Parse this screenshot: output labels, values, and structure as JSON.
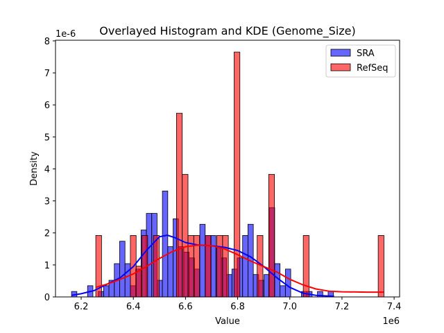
{
  "chart_data": {
    "type": "bar",
    "title": "Overlayed Histogram and KDE (Genome_Size)",
    "xlabel": "Value",
    "ylabel": "Density",
    "x_offset_label": "1e6",
    "y_offset_label": "1e-6",
    "xlim": [
      6.1015,
      7.421
    ],
    "ylim": [
      0,
      8.02
    ],
    "x_ticks": [
      6.2,
      6.4,
      6.6,
      6.8,
      7.0,
      7.2,
      7.4
    ],
    "x_tick_labels": [
      "6.2",
      "6.4",
      "6.6",
      "6.8",
      "7.0",
      "7.2",
      "7.4"
    ],
    "y_ticks": [
      0,
      1,
      2,
      3,
      4,
      5,
      6,
      7,
      8
    ],
    "y_tick_labels": [
      "0",
      "1",
      "2",
      "3",
      "4",
      "5",
      "6",
      "7",
      "8"
    ],
    "grid": false,
    "legend_position": "top-right",
    "series": [
      {
        "name": "SRA",
        "color": "#0000ff",
        "bin_start": 6.163,
        "bin_width": 0.0205,
        "values": [
          0.17,
          0,
          0,
          0.35,
          0,
          0.17,
          0.35,
          0.52,
          1.04,
          1.74,
          1.04,
          0.35,
          0.87,
          2.09,
          2.61,
          2.61,
          0.52,
          3.31,
          1.57,
          2.44,
          1.57,
          1.4,
          1.22,
          0.87,
          2.27,
          1.92,
          1.92,
          1.57,
          1.22,
          0.7,
          0.87,
          1.22,
          1.92,
          2.27,
          0.7,
          0.52,
          0.7,
          2.79,
          1.04,
          0.35,
          0.87,
          0,
          0,
          0.17,
          0.17,
          0,
          0.17,
          0,
          0.17,
          0
        ],
        "kde": {
          "x": [
            6.163,
            6.2,
            6.25,
            6.3,
            6.35,
            6.4,
            6.45,
            6.5,
            6.53,
            6.56,
            6.6,
            6.65,
            6.7,
            6.75,
            6.8,
            6.85,
            6.9,
            6.95,
            7.0,
            7.05,
            7.1,
            7.17
          ],
          "y": [
            0.05,
            0.1,
            0.2,
            0.4,
            0.6,
            0.95,
            1.45,
            1.88,
            1.93,
            1.85,
            1.7,
            1.62,
            1.6,
            1.55,
            1.45,
            1.25,
            0.95,
            0.6,
            0.3,
            0.12,
            0.05,
            0.02
          ]
        }
      },
      {
        "name": "RefSeq",
        "color": "#ff0000",
        "bin_start": 6.256,
        "bin_width": 0.0221,
        "values": [
          1.92,
          0,
          0,
          0,
          0,
          0,
          1.92,
          0.96,
          1.92,
          0,
          1.92,
          0,
          0,
          0,
          5.74,
          3.83,
          1.92,
          1.92,
          0,
          1.92,
          0,
          1.92,
          1.92,
          0,
          7.65,
          0,
          0,
          0,
          1.92,
          0,
          3.83,
          0,
          0,
          0,
          0,
          0,
          1.92,
          0,
          0,
          0,
          0,
          0,
          0,
          0,
          0,
          0,
          0,
          0,
          0,
          1.92
        ],
        "kde": {
          "x": [
            6.256,
            6.3,
            6.35,
            6.4,
            6.45,
            6.5,
            6.55,
            6.6,
            6.65,
            6.7,
            6.75,
            6.8,
            6.85,
            6.9,
            6.95,
            7.0,
            7.05,
            7.1,
            7.15,
            7.2,
            7.3,
            7.36
          ],
          "y": [
            0.3,
            0.4,
            0.55,
            0.72,
            0.95,
            1.2,
            1.42,
            1.57,
            1.62,
            1.6,
            1.5,
            1.32,
            1.12,
            0.95,
            0.78,
            0.55,
            0.38,
            0.25,
            0.18,
            0.16,
            0.15,
            0.15
          ]
        }
      }
    ]
  }
}
